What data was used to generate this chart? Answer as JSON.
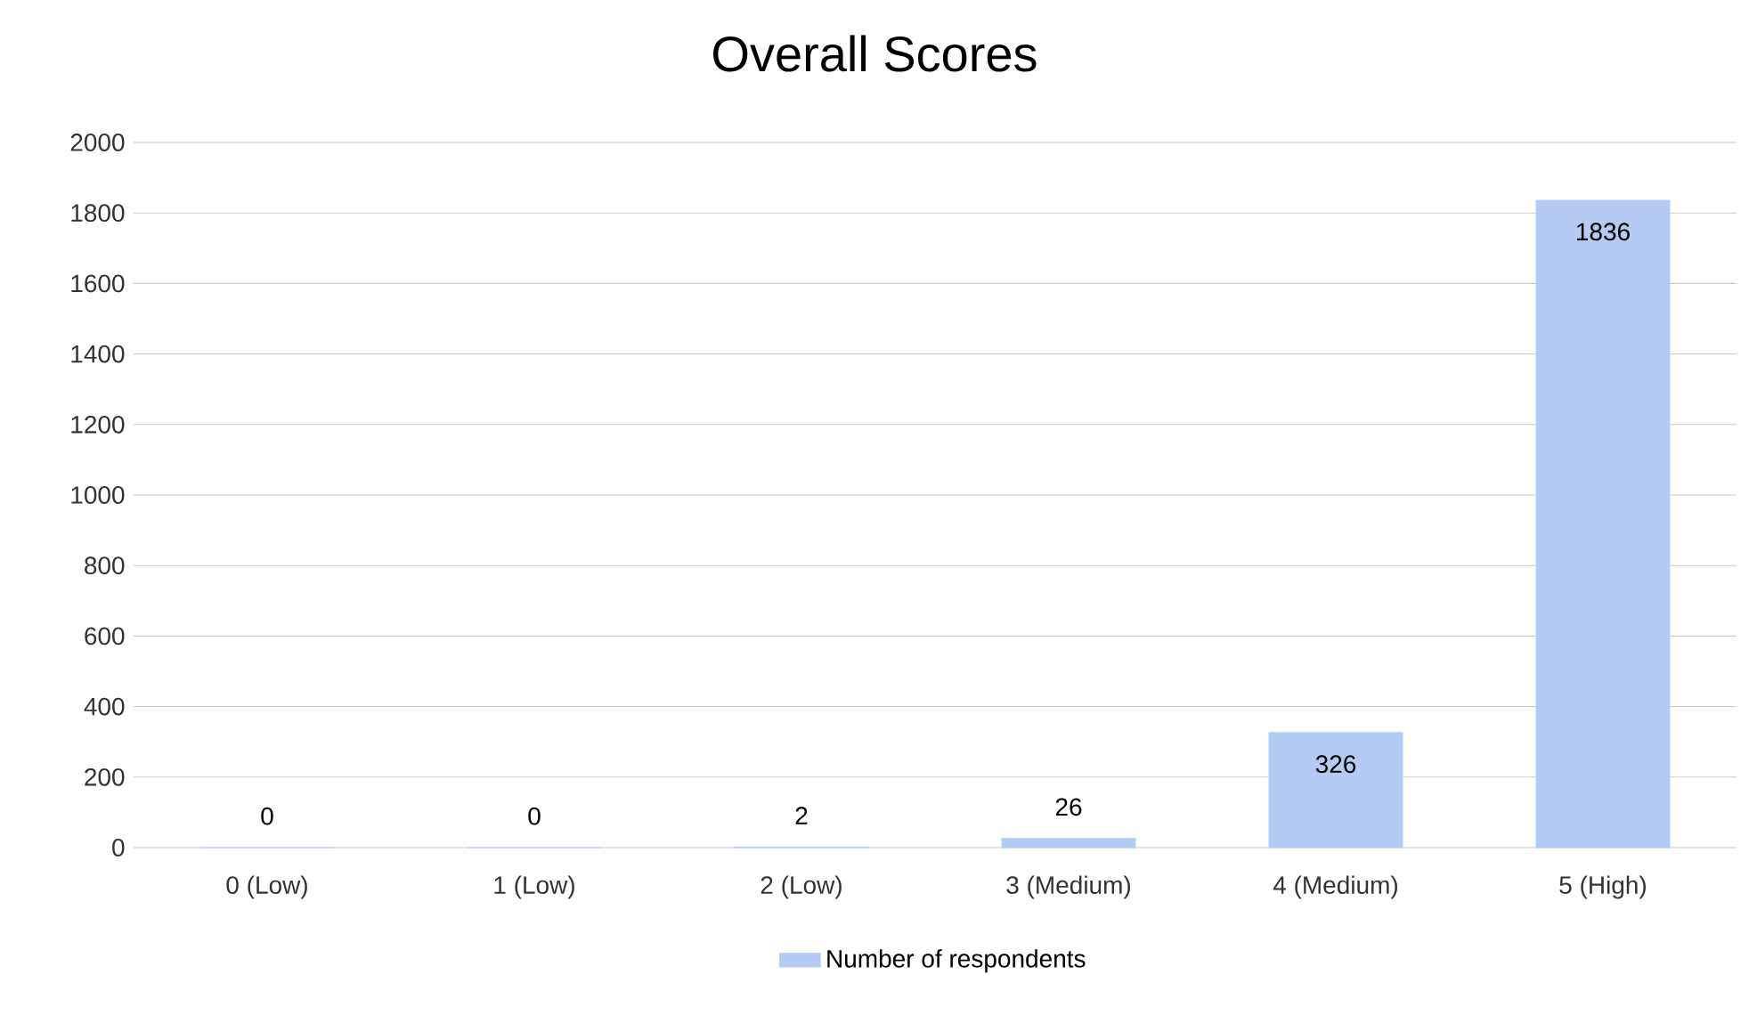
{
  "chart_data": {
    "type": "bar",
    "title": "Overall Scores",
    "categories": [
      "0 (Low)",
      "1 (Low)",
      "2 (Low)",
      "3 (Medium)",
      "4 (Medium)",
      "5 (High)"
    ],
    "series": [
      {
        "name": "Number of respondents",
        "color": "#b4cbf4",
        "values": [
          0,
          0,
          2,
          26,
          326,
          1836
        ]
      }
    ],
    "ylim": [
      0,
      2000
    ],
    "yticks": [
      0,
      200,
      400,
      600,
      800,
      1000,
      1200,
      1400,
      1600,
      1800,
      2000
    ],
    "grid": "y",
    "legend": "bottom",
    "data_labels": true
  }
}
